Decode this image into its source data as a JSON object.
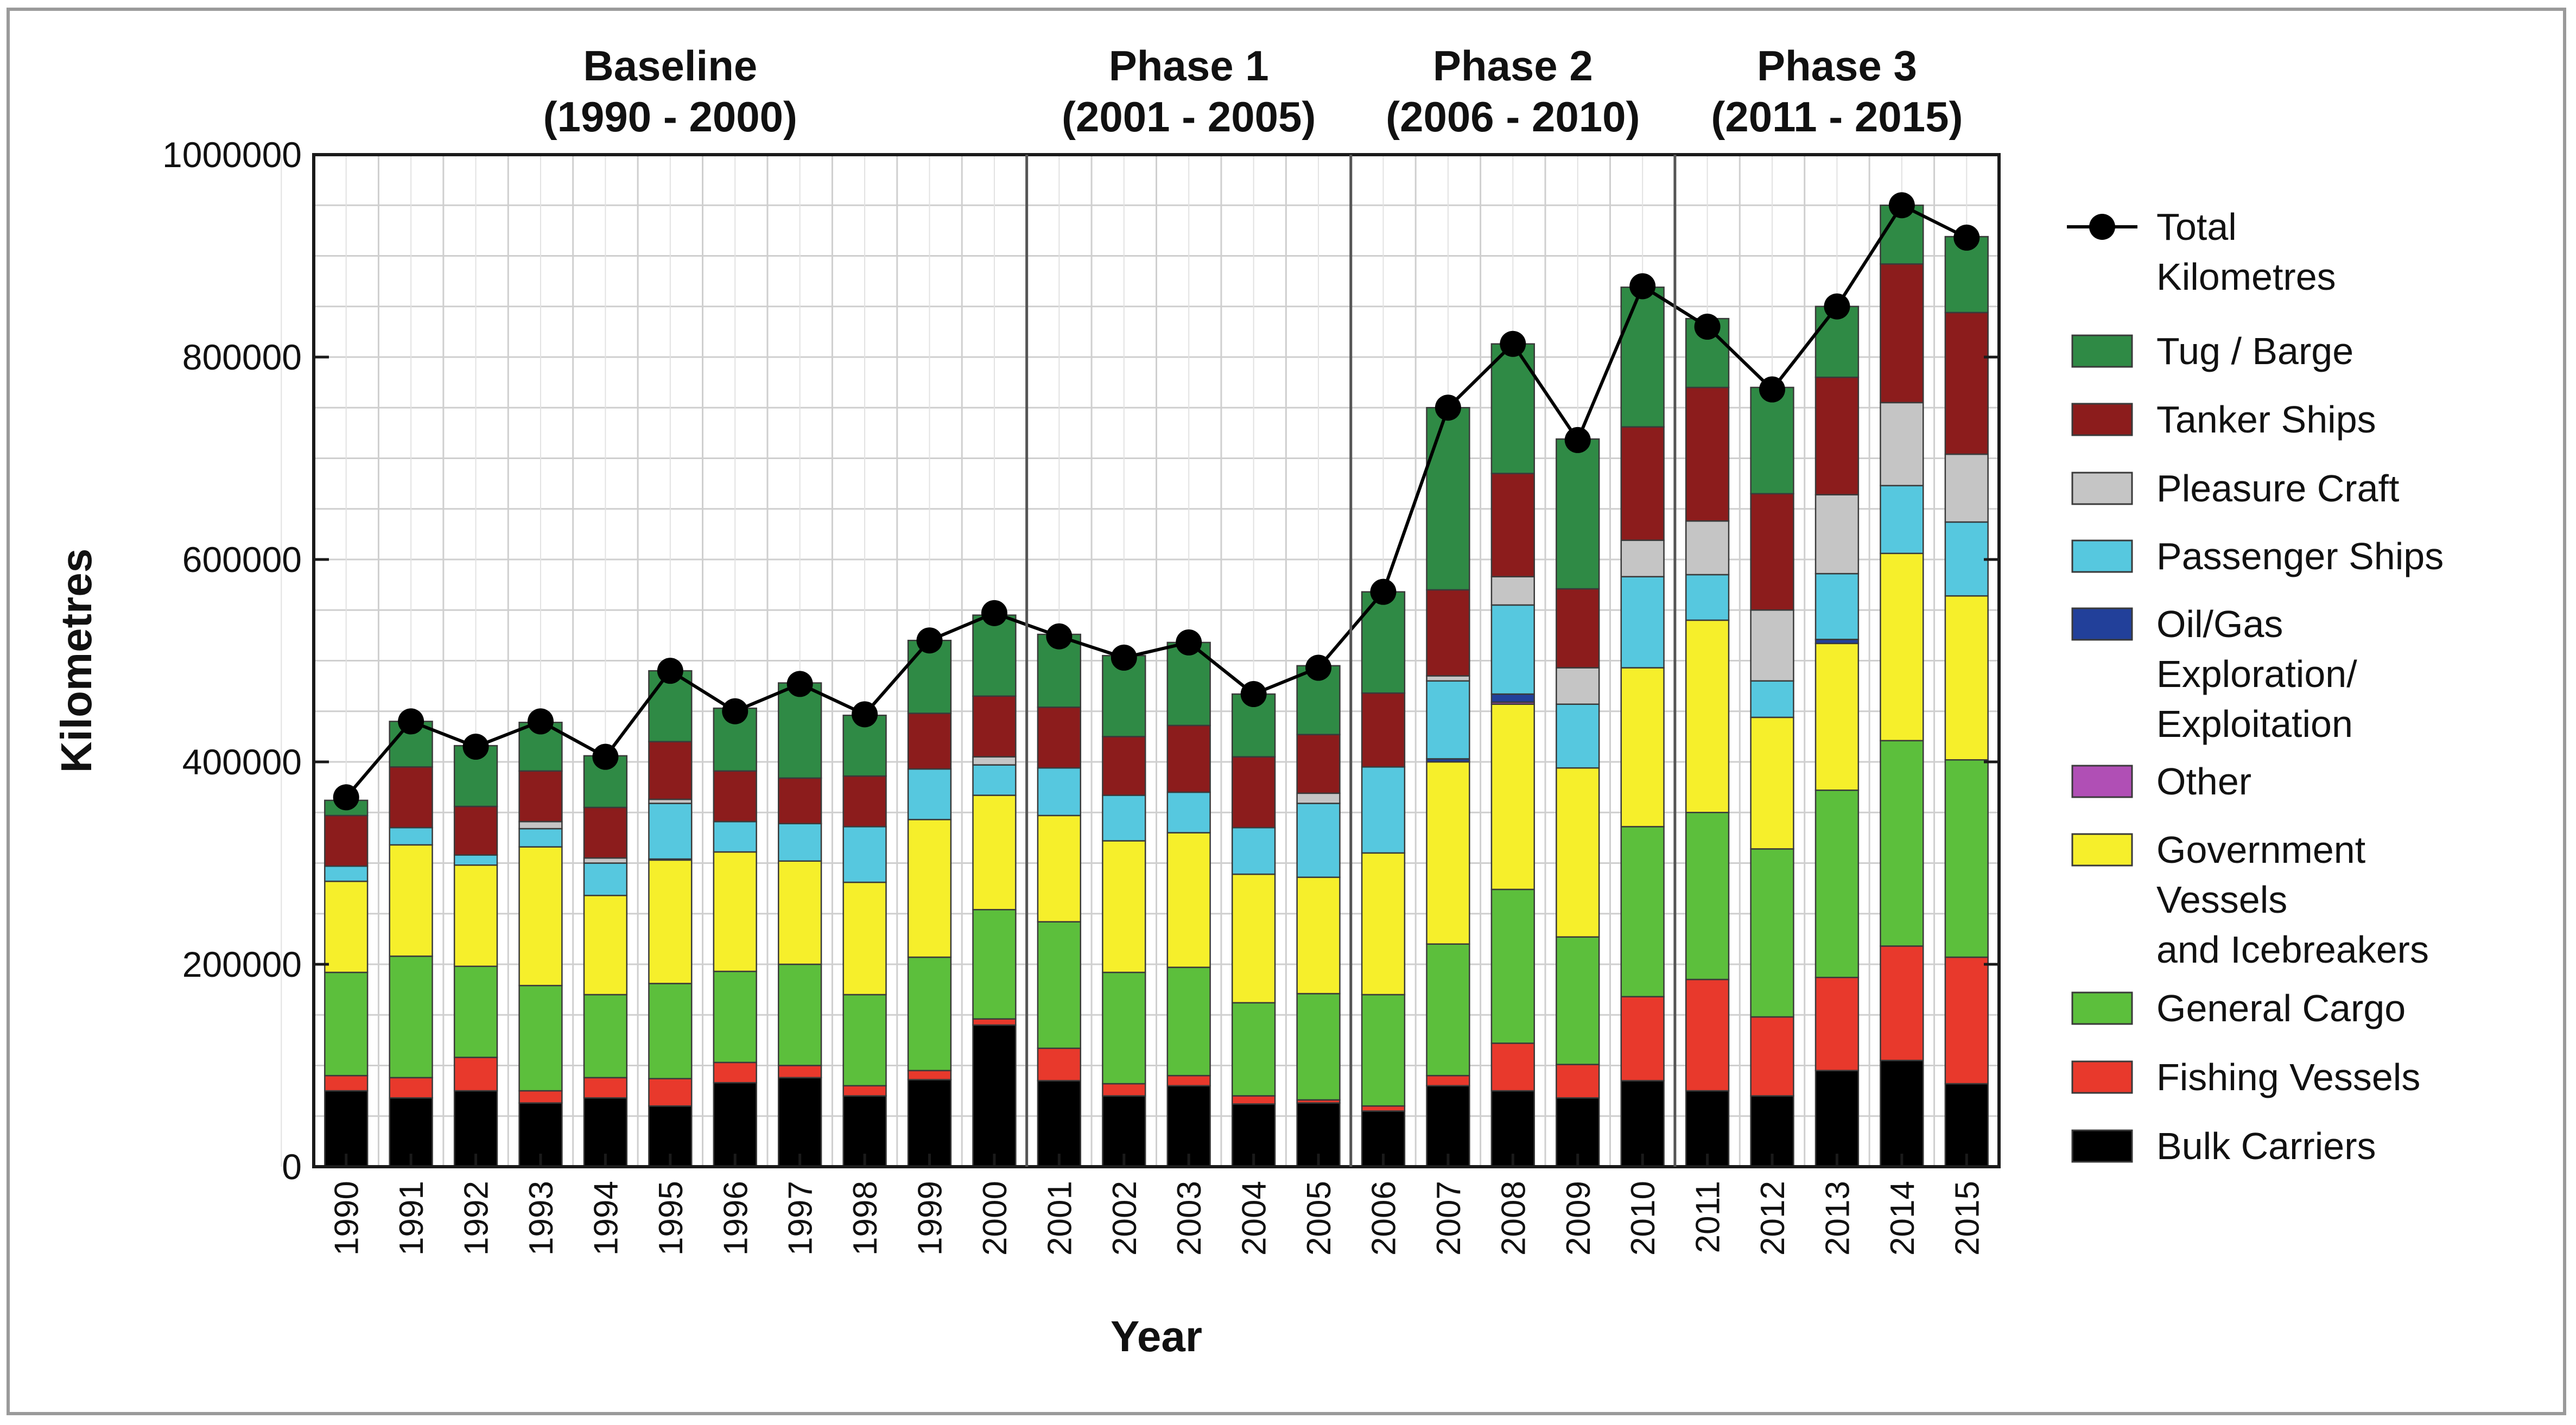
{
  "chart_data": {
    "type": "bar",
    "stacked": true,
    "title": "",
    "xlabel": "Year",
    "ylabel": "Kilometres",
    "ylim": [
      0,
      1000000
    ],
    "yticks": [
      0,
      200000,
      400000,
      600000,
      800000,
      1000000
    ],
    "grid": true,
    "legend_position": "right",
    "categories": [
      "1990",
      "1991",
      "1992",
      "1993",
      "1994",
      "1995",
      "1996",
      "1997",
      "1998",
      "1999",
      "2000",
      "2001",
      "2002",
      "2003",
      "2004",
      "2005",
      "2006",
      "2007",
      "2008",
      "2009",
      "2010",
      "2011",
      "2012",
      "2013",
      "2014",
      "2015"
    ],
    "phases": [
      {
        "name": "Baseline",
        "range": "(1990 - 2000)",
        "first": "1990",
        "last": "2000"
      },
      {
        "name": "Phase 1",
        "range": "(2001 - 2005)",
        "first": "2001",
        "last": "2005"
      },
      {
        "name": "Phase 2",
        "range": "(2006 - 2010)",
        "first": "2006",
        "last": "2010"
      },
      {
        "name": "Phase 3",
        "range": "(2011 - 2015)",
        "first": "2011",
        "last": "2015"
      }
    ],
    "series": [
      {
        "name": "Bulk Carriers",
        "color": "#000000",
        "values": [
          75000,
          68000,
          75000,
          63000,
          68000,
          60000,
          83000,
          88000,
          70000,
          86000,
          140000,
          85000,
          70000,
          80000,
          62000,
          63000,
          55000,
          80000,
          75000,
          68000,
          85000,
          75000,
          70000,
          95000,
          105000,
          82000
        ]
      },
      {
        "name": "Fishing Vessels",
        "color": "#e8392c",
        "values": [
          15000,
          20000,
          33000,
          12000,
          20000,
          27000,
          20000,
          12000,
          10000,
          9000,
          6000,
          32000,
          12000,
          10000,
          8000,
          3000,
          5000,
          10000,
          47000,
          33000,
          83000,
          110000,
          78000,
          92000,
          113000,
          125000
        ]
      },
      {
        "name": "General Cargo",
        "color": "#5cbf3c",
        "values": [
          102000,
          120000,
          90000,
          104000,
          82000,
          94000,
          90000,
          100000,
          90000,
          112000,
          108000,
          125000,
          110000,
          107000,
          92000,
          105000,
          110000,
          130000,
          152000,
          126000,
          168000,
          165000,
          166000,
          185000,
          203000,
          195000
        ]
      },
      {
        "name": "Government Vessels and Icebreakers",
        "color": "#f6ef2b",
        "values": [
          90000,
          110000,
          100000,
          137000,
          98000,
          122000,
          118000,
          102000,
          111000,
          136000,
          113000,
          105000,
          130000,
          133000,
          127000,
          115000,
          140000,
          180000,
          183000,
          167000,
          157000,
          190000,
          130000,
          145000,
          185000,
          162000
        ]
      },
      {
        "name": "Other",
        "color": "#b04fb5",
        "values": [
          0,
          0,
          0,
          0,
          0,
          0,
          0,
          0,
          0,
          0,
          0,
          0,
          0,
          0,
          0,
          0,
          0,
          0,
          2000,
          0,
          0,
          0,
          0,
          0,
          0,
          0
        ]
      },
      {
        "name": "Oil/Gas Exploration/ Exploitation",
        "color": "#22409a",
        "values": [
          0,
          0,
          0,
          0,
          0,
          1000,
          0,
          0,
          0,
          0,
          0,
          0,
          0,
          0,
          0,
          0,
          0,
          3000,
          8000,
          0,
          0,
          0,
          0,
          4000,
          0,
          0
        ]
      },
      {
        "name": "Passenger Ships",
        "color": "#56c8df",
        "values": [
          15000,
          17000,
          10000,
          18000,
          32000,
          55000,
          30000,
          37000,
          55000,
          50000,
          30000,
          47000,
          45000,
          40000,
          46000,
          73000,
          85000,
          77000,
          88000,
          63000,
          90000,
          45000,
          36000,
          65000,
          67000,
          73000
        ]
      },
      {
        "name": "Pleasure Craft",
        "color": "#c5c5c5",
        "values": [
          0,
          0,
          0,
          7000,
          5000,
          4000,
          0,
          0,
          0,
          0,
          8000,
          0,
          0,
          0,
          0,
          10000,
          0,
          5000,
          28000,
          36000,
          36000,
          53000,
          70000,
          78000,
          82000,
          67000
        ]
      },
      {
        "name": "Tanker Ships",
        "color": "#8c1c1c",
        "values": [
          50000,
          60000,
          48000,
          50000,
          50000,
          57000,
          50000,
          45000,
          50000,
          55000,
          60000,
          60000,
          58000,
          66000,
          70000,
          58000,
          73000,
          85000,
          102000,
          78000,
          112000,
          132000,
          115000,
          116000,
          137000,
          140000
        ]
      },
      {
        "name": "Tug / Barge",
        "color": "#2f8a45",
        "values": [
          15000,
          45000,
          60000,
          48000,
          51000,
          70000,
          62000,
          94000,
          60000,
          72000,
          80000,
          72000,
          80000,
          82000,
          62000,
          68000,
          100000,
          180000,
          128000,
          148000,
          138000,
          68000,
          105000,
          70000,
          58000,
          75000
        ]
      }
    ],
    "total": {
      "name": "Total Kilometres",
      "color": "#000000",
      "values": [
        365000,
        440000,
        415000,
        440000,
        405000,
        490000,
        450000,
        477000,
        447000,
        520000,
        547000,
        524000,
        503000,
        518000,
        467000,
        493000,
        568000,
        750000,
        813000,
        718000,
        870000,
        830000,
        768000,
        850000,
        950000,
        918000
      ]
    },
    "legend_order": [
      "Total Kilometres",
      "Tug / Barge",
      "Tanker Ships",
      "Pleasure Craft",
      "Passenger Ships",
      "Oil/Gas Exploration/ Exploitation",
      "Other",
      "Government Vessels and Icebreakers",
      "General Cargo",
      "Fishing Vessels",
      "Bulk Carriers"
    ],
    "legend_lines": {
      "Total Kilometres": [
        "Total",
        "Kilometres"
      ],
      "Tug / Barge": [
        "Tug / Barge"
      ],
      "Tanker Ships": [
        "Tanker Ships"
      ],
      "Pleasure Craft": [
        "Pleasure Craft"
      ],
      "Passenger Ships": [
        "Passenger Ships"
      ],
      "Oil/Gas Exploration/ Exploitation": [
        "Oil/Gas",
        "Exploration/",
        "Exploitation"
      ],
      "Other": [
        "Other"
      ],
      "Government Vessels and Icebreakers": [
        "Government",
        "Vessels",
        "and Icebreakers"
      ],
      "General Cargo": [
        "General Cargo"
      ],
      "Fishing Vessels": [
        "Fishing Vessels"
      ],
      "Bulk Carriers": [
        "Bulk Carriers"
      ]
    }
  }
}
